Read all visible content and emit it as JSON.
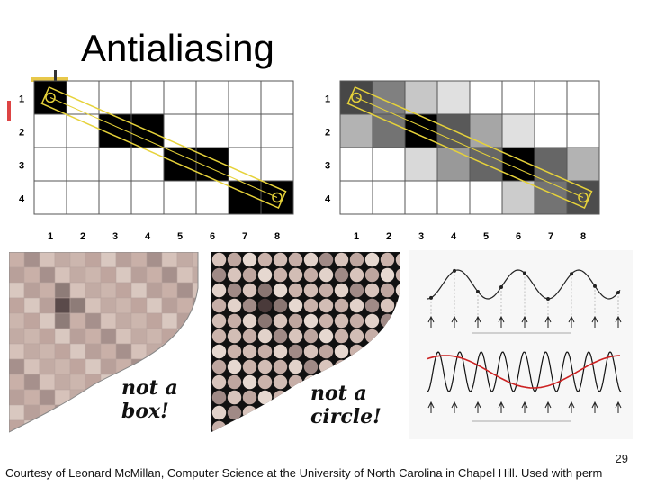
{
  "slide": {
    "title": "Antialiasing",
    "page_number": "29",
    "footer": "Courtesy of Leonard McMillan, Computer Science at the University of North Carolina in Chapel Hill. Used with perm"
  },
  "grids": {
    "row_labels": [
      "1",
      "2",
      "3",
      "4"
    ],
    "col_labels": [
      "1",
      "2",
      "3",
      "4",
      "5",
      "6",
      "7",
      "8"
    ],
    "binary": [
      [
        1,
        0,
        0,
        0,
        0,
        0,
        0,
        0
      ],
      [
        0,
        0,
        1,
        1,
        0,
        0,
        0,
        0
      ],
      [
        0,
        0,
        0,
        0,
        1,
        1,
        0,
        0
      ],
      [
        0,
        0,
        0,
        0,
        0,
        0,
        1,
        1
      ]
    ],
    "gray": [
      [
        0.72,
        0.5,
        0.22,
        0.12,
        0,
        0,
        0,
        0
      ],
      [
        0.3,
        0.55,
        1.0,
        0.65,
        0.35,
        0.12,
        0,
        0
      ],
      [
        0,
        0,
        0.15,
        0.4,
        0.6,
        1.0,
        0.6,
        0.3
      ],
      [
        0,
        0,
        0,
        0,
        0,
        0.2,
        0.55,
        0.7
      ]
    ]
  },
  "panels": {
    "box_caption_line1": "not a",
    "box_caption_line2": "box!",
    "circle_caption_line1": "not a",
    "circle_caption_line2": "circle!"
  },
  "colors": {
    "accent": "#e8c84a",
    "line": "#e6d23a",
    "wave_red": "#cc2222"
  }
}
